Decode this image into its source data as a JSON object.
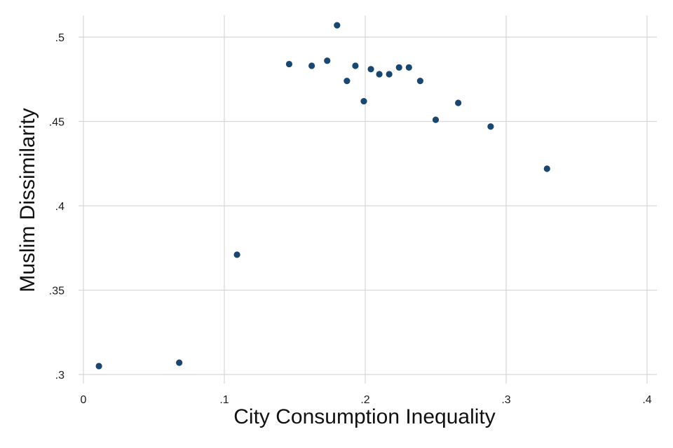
{
  "chart_data": {
    "type": "scatter",
    "title": "",
    "xlabel": "City Consumption Inequality",
    "ylabel": "Muslim Dissimilarity",
    "xlim": [
      0,
      0.4
    ],
    "ylim": [
      0.3,
      0.5
    ],
    "x_ticks": [
      0,
      0.1,
      0.2,
      0.3,
      0.4
    ],
    "x_tick_labels": [
      "0",
      ".1",
      ".2",
      ".3",
      ".4"
    ],
    "y_ticks": [
      0.3,
      0.35,
      0.4,
      0.45,
      0.5
    ],
    "y_tick_labels": [
      ".3",
      ".35",
      ".4",
      ".45",
      ".5"
    ],
    "grid": true,
    "marker_color": "#1a476f",
    "grid_color": "#d7d7d7",
    "series": [
      {
        "points": [
          {
            "x": 0.011,
            "y": 0.305
          },
          {
            "x": 0.068,
            "y": 0.307
          },
          {
            "x": 0.109,
            "y": 0.371
          },
          {
            "x": 0.146,
            "y": 0.484
          },
          {
            "x": 0.162,
            "y": 0.483
          },
          {
            "x": 0.173,
            "y": 0.486
          },
          {
            "x": 0.18,
            "y": 0.507
          },
          {
            "x": 0.187,
            "y": 0.474
          },
          {
            "x": 0.193,
            "y": 0.483
          },
          {
            "x": 0.199,
            "y": 0.462
          },
          {
            "x": 0.204,
            "y": 0.481
          },
          {
            "x": 0.21,
            "y": 0.478
          },
          {
            "x": 0.217,
            "y": 0.478
          },
          {
            "x": 0.224,
            "y": 0.482
          },
          {
            "x": 0.231,
            "y": 0.482
          },
          {
            "x": 0.239,
            "y": 0.474
          },
          {
            "x": 0.25,
            "y": 0.451
          },
          {
            "x": 0.266,
            "y": 0.461
          },
          {
            "x": 0.289,
            "y": 0.447
          },
          {
            "x": 0.329,
            "y": 0.422
          }
        ]
      }
    ]
  }
}
